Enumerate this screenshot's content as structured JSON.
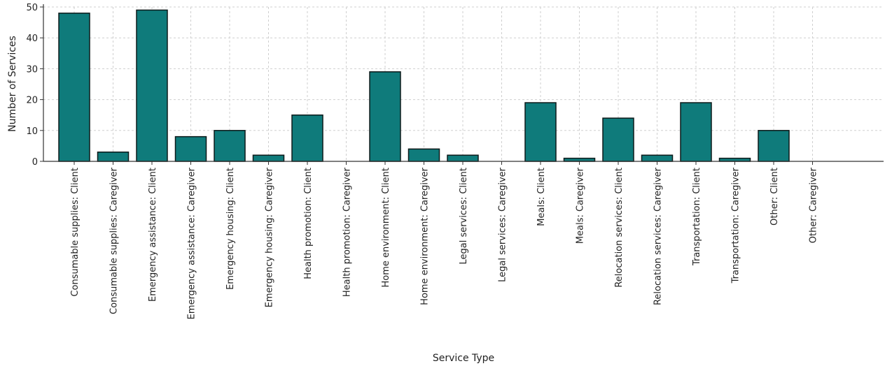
{
  "chart_data": {
    "type": "bar",
    "title": "",
    "xlabel": "Service Type",
    "ylabel": "Number of Services",
    "ylim": [
      0,
      50
    ],
    "yticks": [
      0,
      10,
      20,
      30,
      40,
      50
    ],
    "grid": true,
    "bar_color": "#0f7b7b",
    "categories": [
      "Consumable supplies: Client",
      "Consumable supplies: Caregiver",
      "Emergency assistance: Client",
      "Emergency assistance: Caregiver",
      "Emergency housing: Client",
      "Emergency housing: Caregiver",
      "Health promotion: Client",
      "Health promotion: Caregiver",
      "Home environment: Client",
      "Home environment: Caregiver",
      "Legal services: Client",
      "Legal services: Caregiver",
      "Meals: Client",
      "Meals: Caregiver",
      "Relocation services: Client",
      "Relocation services: Caregiver",
      "Transportation: Client",
      "Transportation: Caregiver",
      "Other: Client",
      "Other: Caregiver"
    ],
    "values": [
      48,
      3,
      49,
      8,
      10,
      2,
      15,
      0,
      29,
      4,
      2,
      0,
      19,
      1,
      14,
      2,
      19,
      1,
      10,
      0
    ]
  }
}
